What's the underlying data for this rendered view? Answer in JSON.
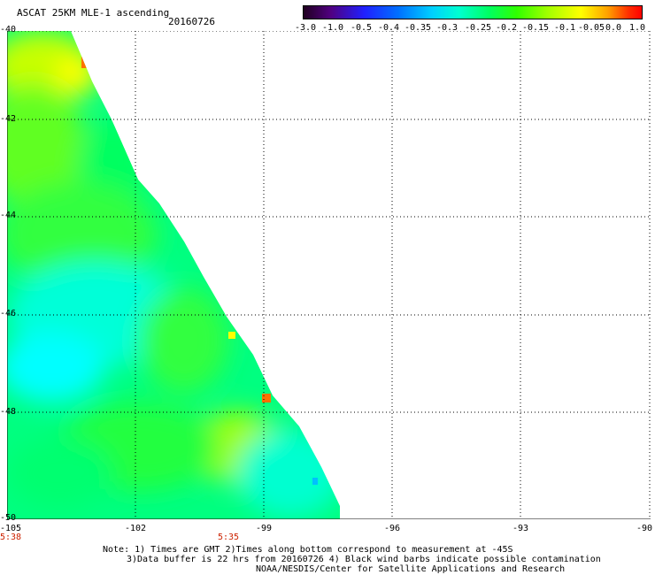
{
  "header": {
    "title": "ASCAT 25KM MLE-1 ascending",
    "date": "20160726"
  },
  "colorbar": {
    "labels": [
      "-3.0",
      "-1.0",
      "-0.5",
      "-0.4",
      "-0.35",
      "-0.3",
      "-0.25",
      "-0.2",
      "-0.15",
      "-0.1",
      "-0.05",
      "0.0",
      "1.0"
    ]
  },
  "axes": {
    "y_labels": [
      "-40",
      "-42",
      "-44",
      "-46",
      "-48",
      "-50"
    ],
    "x_labels": [
      "-105",
      "-102",
      "-99",
      "-96",
      "-93",
      "-90"
    ],
    "times": [
      "5:38",
      "5:35"
    ]
  },
  "notes": {
    "line1": "Note: 1) Times are GMT 2)Times along bottom correspond to measurement at -45S",
    "line2": "3)Data buffer is 22 hrs from 20160726 4) Black wind barbs indicate possible contamination",
    "line3": "NOAA/NESDIS/Center for Satellite Applications and Research"
  },
  "map": {
    "lon_range": [
      -105,
      -90
    ],
    "lat_range": [
      -50,
      -40
    ],
    "swath_edge_note": "data covers region west of a diagonal from (-103.6,-40) to (-97.6,-50)",
    "colors": {
      "low": "#00ffff",
      "mid": "#00ff60",
      "high": "#aaff00",
      "peak": "#ff6000"
    }
  }
}
